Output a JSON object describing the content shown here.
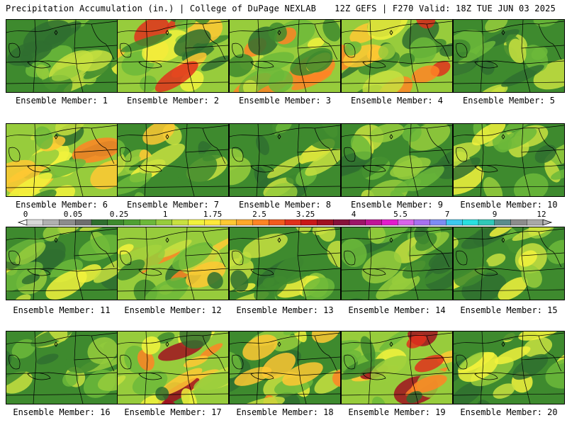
{
  "header": {
    "title_left": "Precipitation Accumulation (in.) | College of DuPage NEXLAB",
    "title_right": "12Z GEFS | F270 Valid: 18Z TUE JUN 03 2025"
  },
  "panels": [
    {
      "label": "Ensemble Member: 1",
      "intensity": 0.35
    },
    {
      "label": "Ensemble Member: 2",
      "intensity": 0.7
    },
    {
      "label": "Ensemble Member: 3",
      "intensity": 0.6
    },
    {
      "label": "Ensemble Member: 4",
      "intensity": 0.6
    },
    {
      "label": "Ensemble Member: 5",
      "intensity": 0.25
    },
    {
      "label": "Ensemble Member: 6",
      "intensity": 0.55
    },
    {
      "label": "Ensemble Member: 7",
      "intensity": 0.35
    },
    {
      "label": "Ensemble Member: 8",
      "intensity": 0.3
    },
    {
      "label": "Ensemble Member: 9",
      "intensity": 0.3
    },
    {
      "label": "Ensemble Member: 10",
      "intensity": 0.3
    },
    {
      "label": "Ensemble Member: 11",
      "intensity": 0.3
    },
    {
      "label": "Ensemble Member: 12",
      "intensity": 0.6
    },
    {
      "label": "Ensemble Member: 13",
      "intensity": 0.35
    },
    {
      "label": "Ensemble Member: 14",
      "intensity": 0.15
    },
    {
      "label": "Ensemble Member: 15",
      "intensity": 0.3
    },
    {
      "label": "Ensemble Member: 16",
      "intensity": 0.2
    },
    {
      "label": "Ensemble Member: 17",
      "intensity": 0.8
    },
    {
      "label": "Ensemble Member: 18",
      "intensity": 0.5
    },
    {
      "label": "Ensemble Member: 19",
      "intensity": 0.8
    },
    {
      "label": "Ensemble Member: 20",
      "intensity": 0.45
    }
  ],
  "colorbar": {
    "ticks": [
      "0",
      "0.05",
      "0.25",
      "1",
      "1.75",
      "2.5",
      "3.25",
      "4",
      "5.5",
      "7",
      "9",
      "12"
    ],
    "colors": [
      "#d8d8d8",
      "#b0b0b0",
      "#8c8c8c",
      "#6e6e6e",
      "#2f6f2f",
      "#3e8a2e",
      "#4fa034",
      "#6cb83a",
      "#97cc3c",
      "#c8e040",
      "#f2f23c",
      "#ffe83a",
      "#ffc832",
      "#ffa82a",
      "#ff8424",
      "#f25a1e",
      "#e0301c",
      "#c81818",
      "#a01020",
      "#86103a",
      "#9c1468",
      "#c01496",
      "#e21ccc",
      "#d864ea",
      "#a870f0",
      "#7c8cf4",
      "#3cc8f0",
      "#28e0e0",
      "#30c8b8",
      "#5a8c8c",
      "#8c8c8c",
      "#a8a8a8"
    ]
  }
}
